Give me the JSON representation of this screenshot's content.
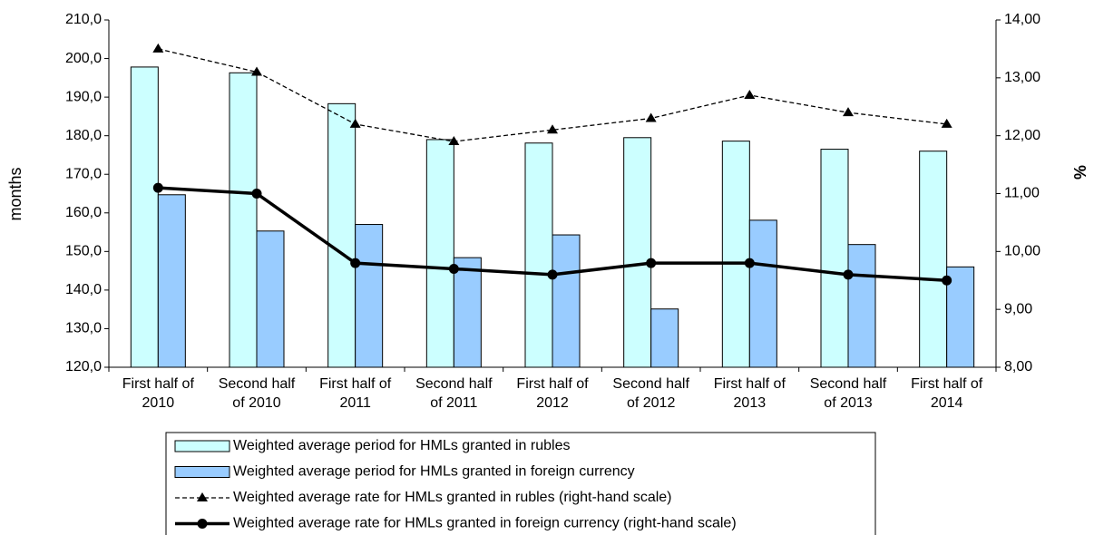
{
  "chart_data": {
    "type": "bar_line",
    "y_label": "months",
    "y2_label": "%",
    "categories": [
      [
        "First half of",
        "2010"
      ],
      [
        "Second half",
        "of 2010"
      ],
      [
        "First half of",
        "2011"
      ],
      [
        "Second half",
        "of 2011"
      ],
      [
        "First half of",
        "2012"
      ],
      [
        "Second half",
        "of 2012"
      ],
      [
        "First half of",
        "2013"
      ],
      [
        "Second half",
        "of 2013"
      ],
      [
        "First half of",
        "2014"
      ]
    ],
    "ylim": [
      120,
      210
    ],
    "yticks": [
      {
        "value": 120,
        "label": "120,0"
      },
      {
        "value": 130,
        "label": "130,0"
      },
      {
        "value": 140,
        "label": "140,0"
      },
      {
        "value": 150,
        "label": "150,0"
      },
      {
        "value": 160,
        "label": "160,0"
      },
      {
        "value": 170,
        "label": "170,0"
      },
      {
        "value": 180,
        "label": "180,0"
      },
      {
        "value": 190,
        "label": "190,0"
      },
      {
        "value": 200,
        "label": "200,0"
      },
      {
        "value": 210,
        "label": "210,0"
      }
    ],
    "y2lim": [
      8,
      14
    ],
    "y2ticks": [
      {
        "value": 8,
        "label": "8,00"
      },
      {
        "value": 9,
        "label": "9,00"
      },
      {
        "value": 10,
        "label": "10,00"
      },
      {
        "value": 11,
        "label": "11,00"
      },
      {
        "value": 12,
        "label": "12,00"
      },
      {
        "value": 13,
        "label": "13,00"
      },
      {
        "value": 14,
        "label": "14,00"
      }
    ],
    "series": [
      {
        "name": "Weighted average period for HMLs granted in rubles",
        "type": "bar",
        "color": "#ccffff",
        "values": [
          197.8,
          196.3,
          188.3,
          179.0,
          178.1,
          179.5,
          178.6,
          176.5,
          176.0
        ]
      },
      {
        "name": "Weighted average period for HMLs granted in foreign currency",
        "type": "bar",
        "color": "#99ccff",
        "values": [
          164.7,
          155.3,
          157.0,
          148.4,
          154.3,
          135.1,
          158.1,
          151.8,
          146.0
        ]
      },
      {
        "name": "Weighted average rate for HMLs granted in rubles (right-hand scale)",
        "type": "line",
        "axis": "y2",
        "color": "#000000",
        "dashed": true,
        "marker": "triangle",
        "values": [
          13.5,
          13.1,
          12.2,
          11.9,
          12.1,
          12.3,
          12.7,
          12.4,
          12.2
        ]
      },
      {
        "name": "Weighted average rate for HMLs granted in foreign currency (right-hand scale)",
        "type": "line",
        "axis": "y2",
        "color": "#000000",
        "dashed": false,
        "marker": "circle",
        "values": [
          11.1,
          11.0,
          9.8,
          9.7,
          9.6,
          9.8,
          9.8,
          9.6,
          9.5
        ]
      }
    ]
  }
}
